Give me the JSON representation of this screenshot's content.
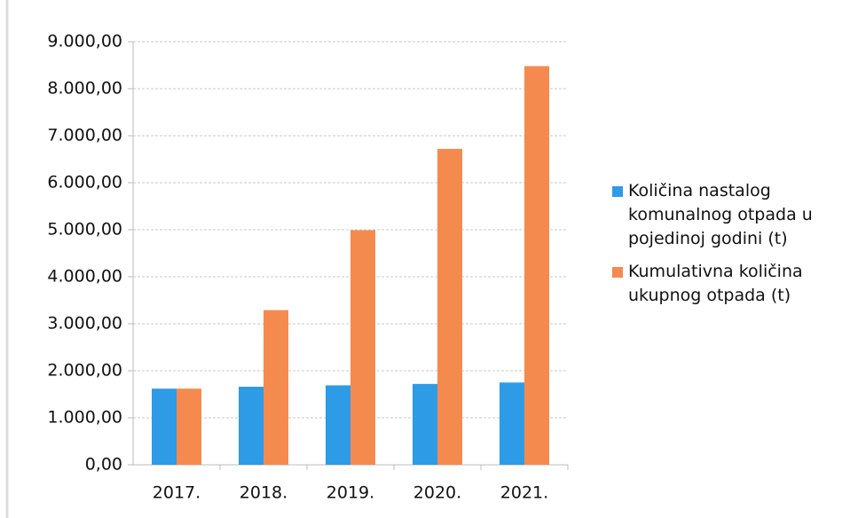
{
  "chart_data": {
    "type": "bar",
    "categories": [
      "2017.",
      "2018.",
      "2019.",
      "2020.",
      "2021."
    ],
    "series": [
      {
        "name": "Količina nastalog komunalnog otpada u pojedinoj godini (t)",
        "color": "#2e9be6",
        "values": [
          1620,
          1660,
          1690,
          1720,
          1750
        ]
      },
      {
        "name": "Kumulativna količina ukupnog otpada (t)",
        "color": "#f58a4f",
        "values": [
          1620,
          3290,
          4990,
          6720,
          8480
        ]
      }
    ],
    "ylim": [
      0,
      9000
    ],
    "yticks": [
      {
        "value": 0,
        "label": "0,00"
      },
      {
        "value": 1000,
        "label": "1.000,00"
      },
      {
        "value": 2000,
        "label": "2.000,00"
      },
      {
        "value": 3000,
        "label": "3.000,00"
      },
      {
        "value": 4000,
        "label": "4.000,00"
      },
      {
        "value": 5000,
        "label": "5.000,00"
      },
      {
        "value": 6000,
        "label": "6.000,00"
      },
      {
        "value": 7000,
        "label": "7.000,00"
      },
      {
        "value": 8000,
        "label": "8.000,00"
      },
      {
        "value": 9000,
        "label": "9.000,00"
      }
    ],
    "grid": true,
    "legend": "right"
  }
}
